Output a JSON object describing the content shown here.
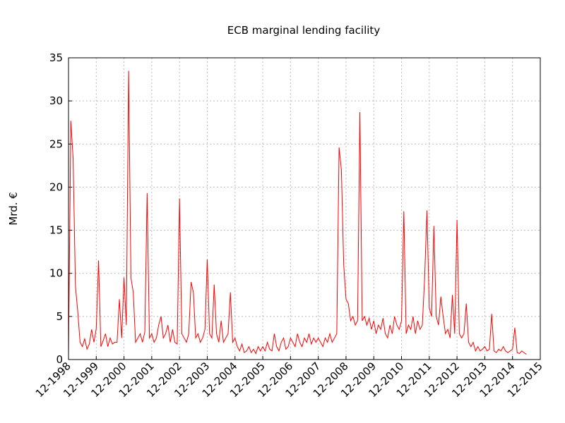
{
  "chart_data": {
    "type": "line",
    "title": "ECB marginal lending facility",
    "y_label": "Mrd. €",
    "x": [
      "1998-12",
      "1999-01",
      "1999-02",
      "1999-03",
      "1999-04",
      "1999-05",
      "1999-06",
      "1999-07",
      "1999-08",
      "1999-09",
      "1999-10",
      "1999-11",
      "1999-12",
      "2000-01",
      "2000-02",
      "2000-03",
      "2000-04",
      "2000-05",
      "2000-06",
      "2000-07",
      "2000-08",
      "2000-09",
      "2000-10",
      "2000-11",
      "2000-12",
      "2001-01",
      "2001-02",
      "2001-03",
      "2001-04",
      "2001-05",
      "2001-06",
      "2001-07",
      "2001-08",
      "2001-09",
      "2001-10",
      "2001-11",
      "2001-12",
      "2002-01",
      "2002-02",
      "2002-03",
      "2002-04",
      "2002-05",
      "2002-06",
      "2002-07",
      "2002-08",
      "2002-09",
      "2002-10",
      "2002-11",
      "2002-12",
      "2003-01",
      "2003-02",
      "2003-03",
      "2003-04",
      "2003-05",
      "2003-06",
      "2003-07",
      "2003-08",
      "2003-09",
      "2003-10",
      "2003-11",
      "2003-12",
      "2004-01",
      "2004-02",
      "2004-03",
      "2004-04",
      "2004-05",
      "2004-06",
      "2004-07",
      "2004-08",
      "2004-09",
      "2004-10",
      "2004-11",
      "2004-12",
      "2005-01",
      "2005-02",
      "2005-03",
      "2005-04",
      "2005-05",
      "2005-06",
      "2005-07",
      "2005-08",
      "2005-09",
      "2005-10",
      "2005-11",
      "2005-12",
      "2006-01",
      "2006-02",
      "2006-03",
      "2006-04",
      "2006-05",
      "2006-06",
      "2006-07",
      "2006-08",
      "2006-09",
      "2006-10",
      "2006-11",
      "2006-12",
      "2007-01",
      "2007-02",
      "2007-03",
      "2007-04",
      "2007-05",
      "2007-06",
      "2007-07",
      "2007-08",
      "2007-09",
      "2007-10",
      "2007-11",
      "2007-12",
      "2008-01",
      "2008-02",
      "2008-03",
      "2008-04",
      "2008-05",
      "2008-06",
      "2008-07",
      "2008-08",
      "2008-09",
      "2008-10",
      "2008-11",
      "2008-12",
      "2009-01",
      "2009-02",
      "2009-03",
      "2009-04",
      "2009-05",
      "2009-06",
      "2009-07",
      "2009-08",
      "2009-09",
      "2009-10",
      "2009-11",
      "2009-12",
      "2010-01",
      "2010-02",
      "2010-03",
      "2010-04",
      "2010-05",
      "2010-06",
      "2010-07",
      "2010-08",
      "2010-09",
      "2010-10",
      "2010-11",
      "2010-12",
      "2011-01",
      "2011-02",
      "2011-03",
      "2011-04",
      "2011-05",
      "2011-06",
      "2011-07",
      "2011-08",
      "2011-09",
      "2011-10",
      "2011-11",
      "2011-12",
      "2012-01",
      "2012-02",
      "2012-03",
      "2012-04",
      "2012-05",
      "2012-06",
      "2012-07",
      "2012-08",
      "2012-09",
      "2012-10",
      "2012-11",
      "2012-12",
      "2013-01",
      "2013-02",
      "2013-03",
      "2013-04",
      "2013-05",
      "2013-06",
      "2013-07",
      "2013-08",
      "2013-09",
      "2013-10",
      "2013-11",
      "2013-12",
      "2014-01",
      "2014-02",
      "2014-03",
      "2014-04",
      "2014-05",
      "2014-06",
      "2014-07",
      "2014-08",
      "2014-09",
      "2014-10",
      "2014-11",
      "2014-12",
      "2015-01",
      "2015-02",
      "2015-03",
      "2015-04",
      "2015-05",
      "2015-06"
    ],
    "series": [
      {
        "name": "Marginal lending facility",
        "color": "#ff0000",
        "values": [
          0.5,
          27.7,
          23.3,
          8.5,
          5.6,
          2.0,
          1.5,
          2.4,
          1.2,
          1.8,
          3.5,
          2.0,
          3.6,
          11.5,
          1.5,
          2.2,
          3.0,
          1.5,
          2.5,
          1.8,
          2.0,
          2.0,
          7.0,
          2.5,
          9.5,
          4.0,
          33.5,
          9.5,
          7.8,
          2.0,
          2.5,
          3.0,
          2.0,
          3.2,
          19.3,
          2.5,
          3.0,
          2.0,
          2.5,
          4.0,
          5.0,
          2.5,
          3.0,
          4.0,
          2.0,
          3.5,
          2.0,
          1.8,
          18.7,
          3.0,
          2.5,
          2.0,
          3.0,
          9.0,
          7.8,
          2.5,
          3.0,
          2.0,
          2.5,
          3.5,
          11.6,
          3.0,
          2.5,
          8.7,
          3.0,
          2.0,
          4.5,
          2.0,
          2.5,
          3.0,
          7.8,
          2.0,
          2.5,
          1.5,
          1.0,
          1.8,
          0.8,
          1.0,
          1.5,
          0.8,
          1.2,
          0.7,
          1.5,
          1.0,
          1.5,
          1.0,
          2.0,
          1.2,
          1.0,
          3.0,
          1.5,
          1.0,
          2.0,
          2.5,
          1.2,
          1.5,
          2.5,
          2.0,
          1.5,
          3.0,
          2.0,
          1.5,
          2.5,
          2.0,
          3.0,
          1.8,
          2.5,
          2.0,
          2.5,
          2.0,
          1.5,
          2.5,
          2.0,
          3.0,
          2.0,
          2.5,
          3.0,
          24.6,
          22.0,
          11.0,
          7.0,
          6.5,
          4.5,
          5.0,
          4.0,
          4.5,
          28.7,
          4.5,
          5.0,
          4.0,
          4.8,
          3.5,
          4.5,
          3.0,
          4.0,
          3.5,
          4.8,
          3.0,
          2.5,
          4.0,
          3.0,
          5.0,
          4.0,
          3.5,
          4.5,
          17.2,
          3.0,
          4.0,
          3.5,
          5.0,
          3.0,
          4.5,
          3.5,
          4.0,
          9.5,
          17.3,
          6.0,
          5.0,
          15.5,
          5.0,
          4.0,
          7.3,
          5.0,
          3.0,
          3.5,
          2.5,
          7.5,
          3.0,
          16.2,
          3.0,
          2.5,
          3.0,
          6.5,
          2.0,
          1.5,
          2.0,
          1.0,
          1.5,
          1.0,
          1.2,
          1.5,
          1.0,
          1.2,
          5.3,
          1.0,
          0.8,
          1.2,
          1.0,
          1.5,
          1.0,
          0.8,
          1.0,
          1.2,
          3.7,
          0.8,
          0.7,
          1.0,
          0.8,
          0.6
        ]
      }
    ],
    "xlim": [
      "1998-12",
      "2015-12"
    ],
    "xticks": [
      {
        "value": "1998-12",
        "label": "12-1998"
      },
      {
        "value": "1999-12",
        "label": "12-1999"
      },
      {
        "value": "2000-12",
        "label": "12-2000"
      },
      {
        "value": "2001-12",
        "label": "12-2001"
      },
      {
        "value": "2002-12",
        "label": "12-2002"
      },
      {
        "value": "2003-12",
        "label": "12-2003"
      },
      {
        "value": "2004-12",
        "label": "12-2004"
      },
      {
        "value": "2005-12",
        "label": "12-2005"
      },
      {
        "value": "2006-12",
        "label": "12-2006"
      },
      {
        "value": "2007-12",
        "label": "12-2007"
      },
      {
        "value": "2008-12",
        "label": "12-2008"
      },
      {
        "value": "2009-12",
        "label": "12-2009"
      },
      {
        "value": "2010-12",
        "label": "12-2010"
      },
      {
        "value": "2011-12",
        "label": "12-2011"
      },
      {
        "value": "2012-12",
        "label": "12-2012"
      },
      {
        "value": "2013-12",
        "label": "12-2013"
      },
      {
        "value": "2014-12",
        "label": "12-2014"
      },
      {
        "value": "2015-12",
        "label": "12-2015"
      }
    ],
    "ylim": [
      0,
      35
    ],
    "yticks": [
      0,
      5,
      10,
      15,
      20,
      25,
      30,
      35
    ],
    "grid": true
  }
}
